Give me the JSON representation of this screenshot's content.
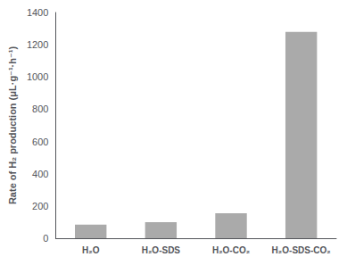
{
  "chart_data": {
    "type": "bar",
    "categories": [
      "H₂O",
      "H₂O-SDS",
      "H₂O-CO₂",
      "H₂O-SDS-CO₂"
    ],
    "values": [
      85,
      100,
      155,
      1280
    ],
    "color": "#aaaaaa",
    "ylabel": "Rate of H₂ production (μL·g⁻¹·h⁻¹)",
    "ylim": [
      0,
      1400
    ],
    "yticks": [
      0,
      200,
      400,
      600,
      800,
      1000,
      1200,
      1400
    ],
    "grid": false
  }
}
